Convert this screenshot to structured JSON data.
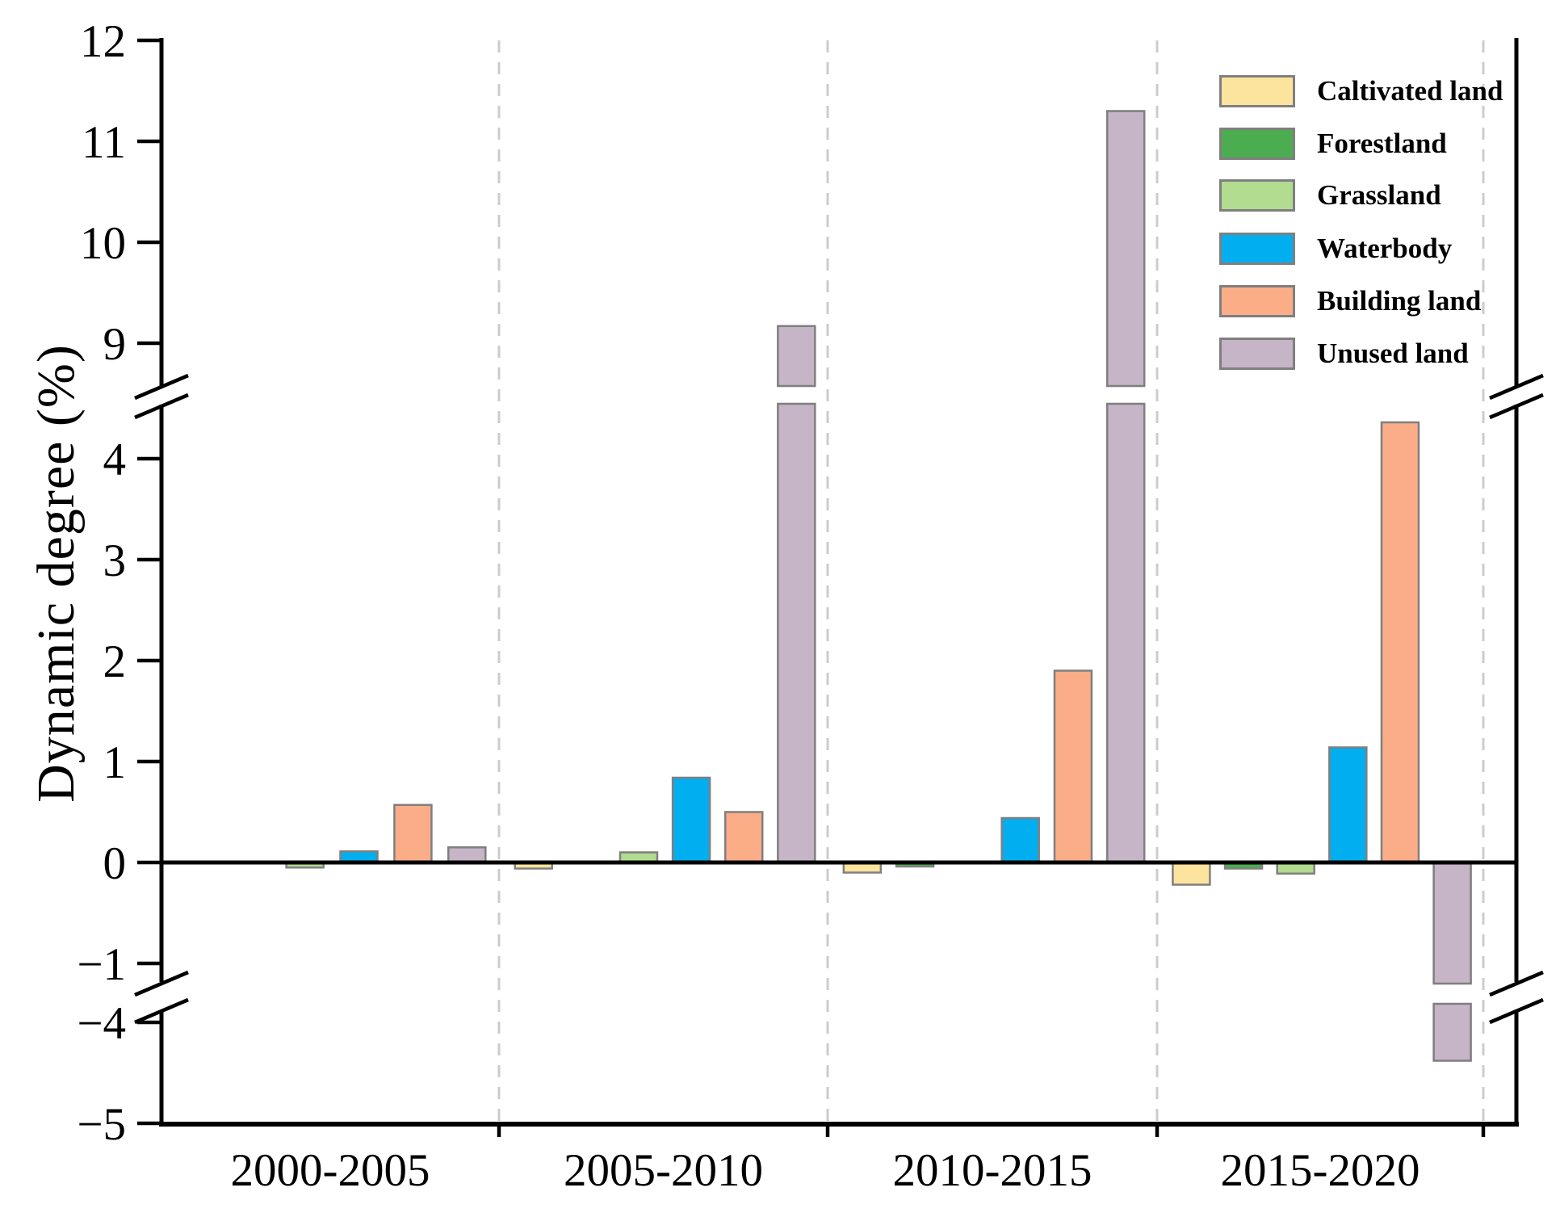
{
  "figure": {
    "background": "#ffffff",
    "axis_color": "#000000",
    "bar_border_color": "#7f7f7f",
    "separator_color": "#cccccc"
  },
  "chart_data": {
    "type": "bar",
    "title": "",
    "xlabel": "",
    "ylabel": "Dynamic degree (%)",
    "grid": false,
    "legend_position": "top-right",
    "categories": [
      "2000-2005",
      "2005-2010",
      "2010-2015",
      "2015-2020"
    ],
    "series": [
      {
        "name": "Caltivated land",
        "color": "#FCE39E",
        "values": [
          -0.02,
          -0.06,
          -0.1,
          -0.22
        ]
      },
      {
        "name": "Forestland",
        "color": "#4BAD4F",
        "values": [
          -0.01,
          -0.01,
          -0.04,
          -0.06
        ]
      },
      {
        "name": "Grassland",
        "color": "#B2DC8F",
        "values": [
          -0.05,
          0.1,
          -0.01,
          -0.11
        ]
      },
      {
        "name": "Waterbody",
        "color": "#01AFF0",
        "values": [
          0.11,
          0.84,
          0.44,
          1.14
        ]
      },
      {
        "name": "Building land",
        "color": "#FBAD88",
        "values": [
          0.57,
          0.5,
          1.9,
          4.36
        ]
      },
      {
        "name": "Unused land",
        "color": "#C6B4C7",
        "values": [
          0.15,
          9.17,
          11.3,
          -4.38
        ]
      }
    ],
    "y_axis": {
      "ticks_upper_segment": [
        12,
        11,
        10,
        9
      ],
      "ticks_middle_segment": [
        4,
        3,
        2,
        1,
        0,
        -1
      ],
      "ticks_lower_segment": [
        -4,
        -5
      ],
      "segment_value_ranges": [
        [
          8.58,
          12
        ],
        [
          -1.1,
          4.54
        ],
        [
          -5,
          -3.66
        ]
      ],
      "broken_axis": true
    }
  }
}
